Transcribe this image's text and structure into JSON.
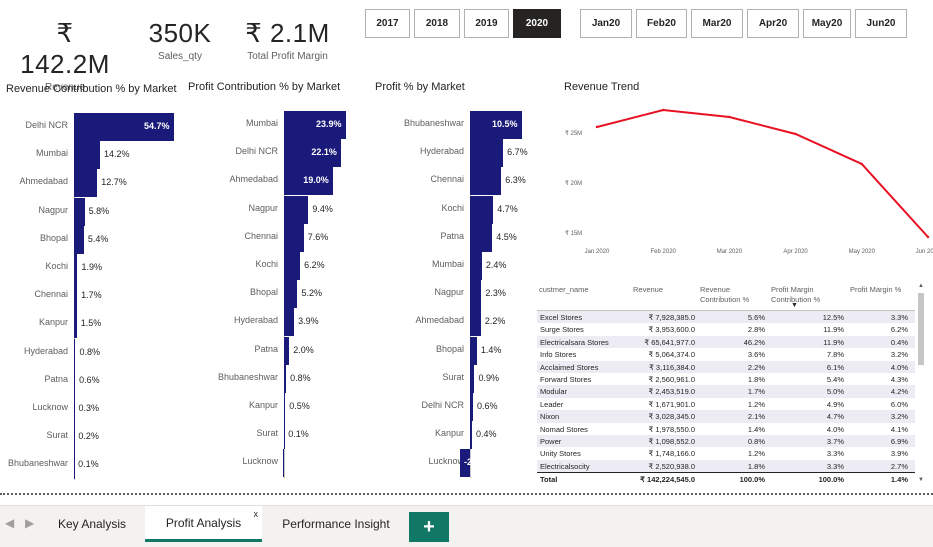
{
  "kpis": [
    {
      "value": "₹ 142.2M",
      "label": "Revenue"
    },
    {
      "value": "350K",
      "label": "Sales_qty"
    },
    {
      "value": "₹ 2.1M",
      "label": "Total Profit Margin"
    }
  ],
  "years": [
    "2017",
    "2018",
    "2019",
    "2020"
  ],
  "selected_year": "2020",
  "months": [
    "Jan20",
    "Feb20",
    "Mar20",
    "Apr20",
    "May20",
    "Jun20"
  ],
  "charts": {
    "revenue_contribution": {
      "title": "Revenue Contribution % by Market",
      "categories": [
        "Delhi NCR",
        "Mumbai",
        "Ahmedabad",
        "Nagpur",
        "Bhopal",
        "Kochi",
        "Chennai",
        "Kanpur",
        "Hyderabad",
        "Patna",
        "Lucknow",
        "Surat",
        "Bhubaneshwar"
      ],
      "values": [
        54.7,
        14.2,
        12.7,
        5.8,
        5.4,
        1.9,
        1.7,
        1.5,
        0.8,
        0.6,
        0.3,
        0.2,
        0.1
      ],
      "labels": [
        "54.7%",
        "14.2%",
        "12.7%",
        "5.8%",
        "5.4%",
        "1.9%",
        "1.7%",
        "1.5%",
        "0.8%",
        "0.6%",
        "0.3%",
        "0.2%",
        "0.1%"
      ]
    },
    "profit_contribution": {
      "title": "Profit Contribution % by Market",
      "categories": [
        "Mumbai",
        "Delhi NCR",
        "Ahmedabad",
        "Nagpur",
        "Chennai",
        "Kochi",
        "Bhopal",
        "Hyderabad",
        "Patna",
        "Bhubaneshwar",
        "Kanpur",
        "Surat",
        "Lucknow"
      ],
      "values": [
        23.9,
        22.1,
        19.0,
        9.4,
        7.6,
        6.2,
        5.2,
        3.9,
        2.0,
        0.8,
        0.5,
        0.1,
        -0.5
      ],
      "labels": [
        "23.9%",
        "22.1%",
        "19.0%",
        "9.4%",
        "7.6%",
        "6.2%",
        "5.2%",
        "3.9%",
        "2.0%",
        "0.8%",
        "0.5%",
        "0.1%",
        ""
      ]
    },
    "profit_pct": {
      "title": "Profit % by Market",
      "categories": [
        "Bhubaneshwar",
        "Hyderabad",
        "Chennai",
        "Kochi",
        "Patna",
        "Mumbai",
        "Nagpur",
        "Ahmedabad",
        "Bhopal",
        "Surat",
        "Delhi NCR",
        "Kanpur",
        "Lucknow"
      ],
      "values": [
        10.5,
        6.7,
        6.3,
        4.7,
        4.5,
        2.4,
        2.3,
        2.2,
        1.4,
        0.9,
        0.6,
        0.4,
        -2.0
      ],
      "labels": [
        "10.5%",
        "6.7%",
        "6.3%",
        "4.7%",
        "4.5%",
        "2.4%",
        "2.3%",
        "2.2%",
        "1.4%",
        "0.9%",
        "0.6%",
        "0.4%",
        "-2"
      ]
    }
  },
  "chart_data": {
    "type": "line",
    "title": "Revenue Trend",
    "x": [
      "Jan 2020",
      "Feb 2020",
      "Mar 2020",
      "Apr 2020",
      "May 2020",
      "Jun 2020"
    ],
    "values": [
      25.5,
      27.2,
      26.5,
      24.8,
      21.8,
      14.5
    ],
    "ytick_labels": [
      "₹ 25M",
      "₹ 20M",
      "₹ 15M"
    ],
    "yticks": [
      25,
      20,
      15
    ],
    "ylim": [
      14.5,
      27.2
    ],
    "color": "#e81123"
  },
  "table": {
    "headers": [
      "custmer_name",
      "Revenue",
      "Revenue Contribution %",
      "Profit Margin Contribution %",
      "Profit Margin %"
    ],
    "rows": [
      [
        "Excel Stores",
        "₹ 7,928,385.0",
        "5.6%",
        "12.5%",
        "3.3%"
      ],
      [
        "Surge Stores",
        "₹ 3,953,600.0",
        "2.8%",
        "11.9%",
        "6.2%"
      ],
      [
        "Electricalsara Stores",
        "₹ 65,641,977.0",
        "46.2%",
        "11.9%",
        "0.4%"
      ],
      [
        "Info Stores",
        "₹ 5,064,374.0",
        "3.6%",
        "7.8%",
        "3.2%"
      ],
      [
        "Acclaimed Stores",
        "₹ 3,116,384.0",
        "2.2%",
        "6.1%",
        "4.0%"
      ],
      [
        "Forward Stores",
        "₹ 2,560,961.0",
        "1.8%",
        "5.4%",
        "4.3%"
      ],
      [
        "Modular",
        "₹ 2,453,519.0",
        "1.7%",
        "5.0%",
        "4.2%"
      ],
      [
        "Leader",
        "₹ 1,671,901.0",
        "1.2%",
        "4.9%",
        "6.0%"
      ],
      [
        "Nixon",
        "₹ 3,028,345.0",
        "2.1%",
        "4.7%",
        "3.2%"
      ],
      [
        "Nomad Stores",
        "₹ 1,978,550.0",
        "1.4%",
        "4.0%",
        "4.1%"
      ],
      [
        "Power",
        "₹ 1,098,552.0",
        "0.8%",
        "3.7%",
        "6.9%"
      ],
      [
        "Unity Stores",
        "₹ 1,748,166.0",
        "1.2%",
        "3.3%",
        "3.9%"
      ],
      [
        "Electricalsocity",
        "₹ 2,520,938.0",
        "1.8%",
        "3.3%",
        "2.7%"
      ]
    ],
    "total": [
      "Total",
      "₹ 142,224,545.0",
      "100.0%",
      "100.0%",
      "1.4%"
    ]
  },
  "tabs": [
    "Key Analysis",
    "Profit Analysis",
    "Performance Insight"
  ],
  "active_tab": "Profit Analysis",
  "add_label": "+",
  "close_label": "x",
  "nav_prev": "◀",
  "nav_next": "▶"
}
